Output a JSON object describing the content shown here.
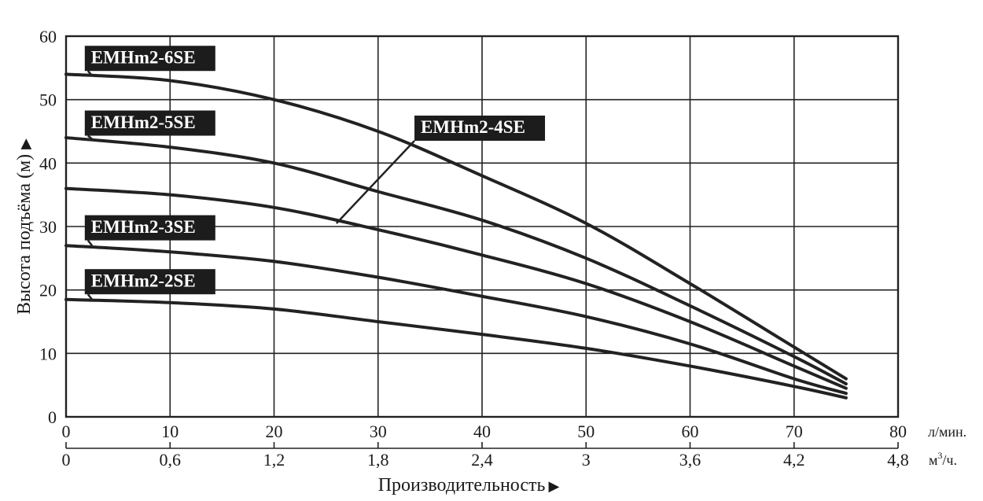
{
  "chart_data": {
    "type": "line",
    "ylabel": "Высота подъёма (м)",
    "xlabel": "Производительность",
    "x_unit_primary": "л/мин.",
    "x_unit_secondary_base": "м",
    "x_unit_secondary_sup": "3",
    "x_unit_secondary_tail": "/ч.",
    "xlim": [
      0,
      80
    ],
    "ylim": [
      0,
      60
    ],
    "x_ticks": [
      "0",
      "10",
      "20",
      "30",
      "40",
      "50",
      "60",
      "70",
      "80"
    ],
    "x2_ticks": [
      "0",
      "0,6",
      "1,2",
      "1,8",
      "2,4",
      "3",
      "3,6",
      "4,2",
      "4,8"
    ],
    "y_ticks": [
      "0",
      "10",
      "20",
      "30",
      "40",
      "50",
      "60"
    ],
    "grid": true,
    "colors": {
      "line": "#222222",
      "label_bg": "#1c1c1c",
      "label_text": "#ffffff",
      "grid": "#222222"
    },
    "series": [
      {
        "name": "EMHm2-6SE",
        "x": [
          0,
          10,
          20,
          30,
          40,
          50,
          60,
          70,
          75
        ],
        "y": [
          54,
          53,
          50,
          45,
          38,
          30.5,
          21,
          11,
          6
        ]
      },
      {
        "name": "EMHm2-5SE",
        "x": [
          0,
          10,
          20,
          30,
          40,
          50,
          60,
          70,
          75
        ],
        "y": [
          44,
          42.5,
          40,
          35.5,
          31,
          25,
          17.5,
          9.5,
          5.2
        ]
      },
      {
        "name": "EMHm2-4SE",
        "x": [
          0,
          10,
          20,
          30,
          40,
          50,
          60,
          70,
          75
        ],
        "y": [
          36,
          35,
          33,
          29.5,
          25.5,
          21,
          15,
          8,
          4.5
        ]
      },
      {
        "name": "EMHm2-3SE",
        "x": [
          0,
          10,
          20,
          30,
          40,
          50,
          60,
          70,
          75
        ],
        "y": [
          27,
          26,
          24.5,
          22,
          19,
          15.8,
          11.5,
          6,
          3.7
        ]
      },
      {
        "name": "EMHm2-2SE",
        "x": [
          0,
          10,
          20,
          30,
          40,
          50,
          60,
          70,
          75
        ],
        "y": [
          18.5,
          18,
          17,
          15,
          13,
          10.8,
          8,
          4.8,
          3
        ]
      }
    ],
    "annotations": [
      {
        "series": "EMHm2-6SE",
        "label_x": 1.8,
        "label_y": 56.5,
        "leader_to_x": 2.5,
        "leader_to_y": 53.8
      },
      {
        "series": "EMHm2-5SE",
        "label_x": 1.8,
        "label_y": 46.3,
        "leader_to_x": 2.5,
        "leader_to_y": 43.8
      },
      {
        "series": "EMHm2-4SE",
        "label_x": 33.5,
        "label_y": 45.5,
        "leader_to_x": 26,
        "leader_to_y": 30.5
      },
      {
        "series": "EMHm2-3SE",
        "label_x": 1.8,
        "label_y": 29.8,
        "leader_to_x": 2.5,
        "leader_to_y": 27
      },
      {
        "series": "EMHm2-2SE",
        "label_x": 1.8,
        "label_y": 21.3,
        "leader_to_x": 2.5,
        "leader_to_y": 18.5
      }
    ]
  }
}
